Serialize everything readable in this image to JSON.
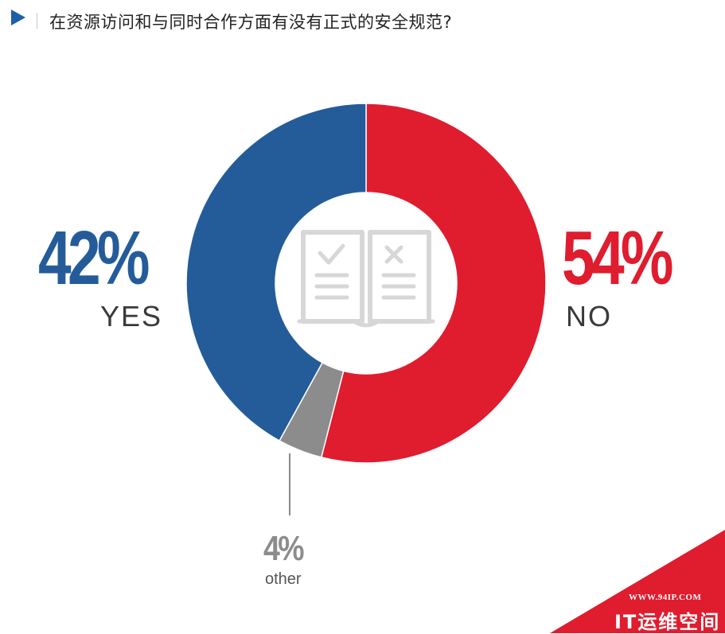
{
  "header": {
    "title": "在资源访问和与同时合作方面有没有正式的安全规范?"
  },
  "colors": {
    "yes": "#245c9a",
    "no": "#e01c2f",
    "other": "#8c8c8c",
    "icon": "#d7d7d7",
    "accent": "#1f5fa8"
  },
  "chart_data": {
    "type": "pie",
    "donut": true,
    "title": "",
    "slices": [
      {
        "label": "YES",
        "value": 42,
        "display": "42%",
        "color": "#245c9a"
      },
      {
        "label": "NO",
        "value": 54,
        "display": "54%",
        "color": "#e01c2f"
      },
      {
        "label": "other",
        "value": 4,
        "display": "4%",
        "color": "#8c8c8c"
      }
    ],
    "center_icon": "open-book-check-cross-icon"
  },
  "watermark": {
    "url": "WWW.94IP.COM",
    "name": "IT运维空间"
  }
}
